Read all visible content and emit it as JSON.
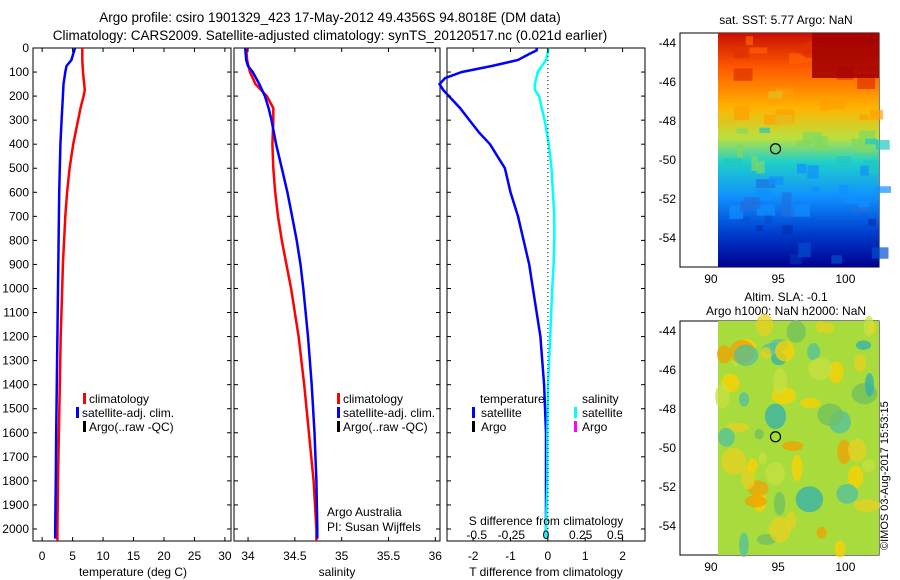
{
  "titles": {
    "line1": "Argo profile: csiro 1901329_423 17-May-2012 49.4356S 94.8018E (DM data)",
    "line2": "Climatology: CARS2009. Satellite-adjusted climatology: synTS_20120517.nc (0.021d earlier)"
  },
  "colors": {
    "climatology": "#ff0000",
    "satellite": "#0000ff",
    "argo": "#000000",
    "sat_salinity": "#00ffff",
    "argo_salinity": "#ff00ff"
  },
  "chart_data": [
    {
      "id": "temperature",
      "type": "line",
      "xlabel": "temperature (deg C)",
      "ylabel": "",
      "xlim": [
        -1.5,
        31
      ],
      "ylim": [
        2050,
        0
      ],
      "xticks": [
        0,
        5,
        10,
        15,
        20,
        25,
        30
      ],
      "yticks": [
        0,
        100,
        200,
        300,
        400,
        500,
        600,
        700,
        800,
        900,
        1000,
        1100,
        1200,
        1300,
        1400,
        1500,
        1600,
        1700,
        1800,
        1900,
        2000
      ],
      "grid": false,
      "legend": {
        "position": "lower-center",
        "entries": [
          "climatology",
          "satellite-adj. clim.",
          "Argo(..raw -QC)"
        ]
      },
      "series": [
        {
          "name": "climatology",
          "color": "#ff0000",
          "depth": [
            0,
            50,
            100,
            150,
            175,
            200,
            250,
            300,
            400,
            500,
            600,
            700,
            800,
            900,
            1000,
            1200,
            1400,
            1600,
            1800,
            2000,
            2050
          ],
          "values": [
            6.6,
            6.6,
            6.7,
            6.9,
            7.0,
            6.8,
            6.3,
            5.9,
            5.1,
            4.5,
            4.1,
            3.8,
            3.6,
            3.4,
            3.3,
            3.05,
            2.9,
            2.75,
            2.6,
            2.5,
            2.5
          ]
        },
        {
          "name": "satellite-adj. clim.",
          "color": "#0000ff",
          "depth": [
            0,
            25,
            50,
            75,
            100,
            150,
            200,
            300,
            400,
            500,
            600,
            700,
            800,
            900,
            1000,
            1200,
            1400,
            1600,
            1800,
            1900,
            2000,
            2040
          ],
          "values": [
            5.4,
            5.1,
            4.8,
            4.0,
            3.8,
            3.5,
            3.4,
            3.2,
            3.0,
            2.9,
            2.8,
            2.75,
            2.7,
            2.65,
            2.6,
            2.5,
            2.4,
            2.3,
            2.25,
            2.2,
            2.15,
            2.15
          ]
        }
      ]
    },
    {
      "id": "salinity",
      "type": "line",
      "xlabel": "salinity",
      "ylabel": "",
      "xlim": [
        33.85,
        36.05
      ],
      "ylim": [
        2050,
        0
      ],
      "xticks": [
        34,
        34.5,
        35,
        35.5,
        36
      ],
      "grid": false,
      "legend": {
        "position": "lower-right",
        "entries": [
          "climatology",
          "satellite-adj. clim.",
          "Argo(..raw -QC)"
        ]
      },
      "annotation": [
        "Argo Australia",
        "PI: Susan Wijffels"
      ],
      "series": [
        {
          "name": "climatology",
          "color": "#ff0000",
          "depth": [
            0,
            50,
            100,
            150,
            200,
            250,
            300,
            400,
            500,
            600,
            700,
            800,
            900,
            1000,
            1200,
            1400,
            1600,
            1800,
            2000,
            2050
          ],
          "values": [
            33.98,
            33.99,
            34.02,
            34.08,
            34.2,
            34.27,
            34.27,
            34.26,
            34.27,
            34.29,
            34.32,
            34.36,
            34.41,
            34.46,
            34.54,
            34.6,
            34.65,
            34.7,
            34.73,
            34.73
          ]
        },
        {
          "name": "satellite-adj. clim.",
          "color": "#0000ff",
          "depth": [
            0,
            50,
            75,
            100,
            150,
            200,
            250,
            300,
            400,
            500,
            600,
            700,
            800,
            900,
            1000,
            1200,
            1400,
            1600,
            1800,
            2000,
            2040
          ],
          "values": [
            33.97,
            33.98,
            34.0,
            34.05,
            34.12,
            34.18,
            34.22,
            34.25,
            34.3,
            34.36,
            34.42,
            34.47,
            34.52,
            34.56,
            34.59,
            34.64,
            34.68,
            34.71,
            34.73,
            34.74,
            34.74
          ]
        }
      ]
    },
    {
      "id": "difference",
      "type": "line",
      "xlabel": "T difference from climatology",
      "xlabel_top": "S difference from climatology",
      "xlim": [
        -2.7,
        2.6
      ],
      "ylim": [
        2050,
        0
      ],
      "xticks": [
        -2,
        -1,
        0,
        1,
        2
      ],
      "xticks_top": [
        -0.5,
        -0.25,
        0,
        0.25,
        0.5
      ],
      "xticklabels_top": [
        "-0.5",
        "-0.25",
        "0",
        "0.25",
        "0.5"
      ],
      "zero_line": "dotted",
      "legend": {
        "position": "lower-center",
        "temperature_header": "temperature",
        "salinity_header": "salinity",
        "temperature_entries": [
          "satellite",
          "Argo"
        ],
        "salinity_entries": [
          "satellite",
          "Argo"
        ]
      },
      "series": [
        {
          "name": "satellite",
          "group": "temperature",
          "color": "#0000ff",
          "depth": [
            0,
            10,
            25,
            50,
            75,
            100,
            125,
            150,
            175,
            200,
            250,
            300,
            350,
            400,
            450,
            500,
            600,
            700,
            800,
            900,
            1000,
            1200,
            1400,
            1600,
            1800,
            2000,
            2040
          ],
          "values": [
            -0.3,
            -0.3,
            -0.5,
            -0.8,
            -1.5,
            -2.3,
            -2.75,
            -2.9,
            -2.8,
            -2.65,
            -2.35,
            -2.1,
            -1.85,
            -1.55,
            -1.35,
            -1.15,
            -1.0,
            -0.8,
            -0.65,
            -0.5,
            -0.4,
            -0.2,
            -0.1,
            -0.05,
            -0.05,
            -0.05,
            -0.05
          ]
        },
        {
          "name": "satellite",
          "group": "salinity",
          "color": "#00ffff",
          "depth": [
            0,
            25,
            50,
            100,
            150,
            175,
            200,
            250,
            300,
            400,
            500,
            600,
            700,
            800,
            900,
            1000,
            1200,
            1400,
            1600,
            1800,
            2000,
            2040
          ],
          "values": [
            0.02,
            0.01,
            0.0,
            -0.06,
            -0.08,
            -0.08,
            -0.05,
            -0.03,
            -0.01,
            0.02,
            0.04,
            0.05,
            0.06,
            0.06,
            0.055,
            0.045,
            0.03,
            0.015,
            0.01,
            0.01,
            0.0,
            0.0
          ]
        }
      ]
    },
    {
      "id": "sst_map",
      "type": "heatmap",
      "title": "sat. SST: 5.77 Argo: NaN",
      "xticks": [
        90,
        95,
        100
      ],
      "yticks": [
        -44,
        -46,
        -48,
        -50,
        -52,
        -54
      ],
      "xlim": [
        87.7,
        102.5
      ],
      "ylim": [
        -55.5,
        -43.5
      ],
      "data_extent_lon": [
        90,
        102.5
      ],
      "argo_marker": {
        "lon": 94.8018,
        "lat": -49.4356
      },
      "colormap": "jet"
    },
    {
      "id": "sla_map",
      "type": "heatmap",
      "title": [
        "Altim. SLA: -0.1",
        "Argo h1000: NaN h2000: NaN"
      ],
      "xticks": [
        90,
        95,
        100
      ],
      "yticks": [
        -44,
        -46,
        -48,
        -50,
        -52,
        -54
      ],
      "xlim": [
        87.7,
        102.5
      ],
      "ylim": [
        -55.5,
        -43.5
      ],
      "data_extent_lon": [
        90,
        102.5
      ],
      "argo_marker": {
        "lon": 94.8018,
        "lat": -49.4356
      },
      "colormap": "jet"
    }
  ],
  "stamp": "©IMOS 03-Aug-2017 15:53:15"
}
